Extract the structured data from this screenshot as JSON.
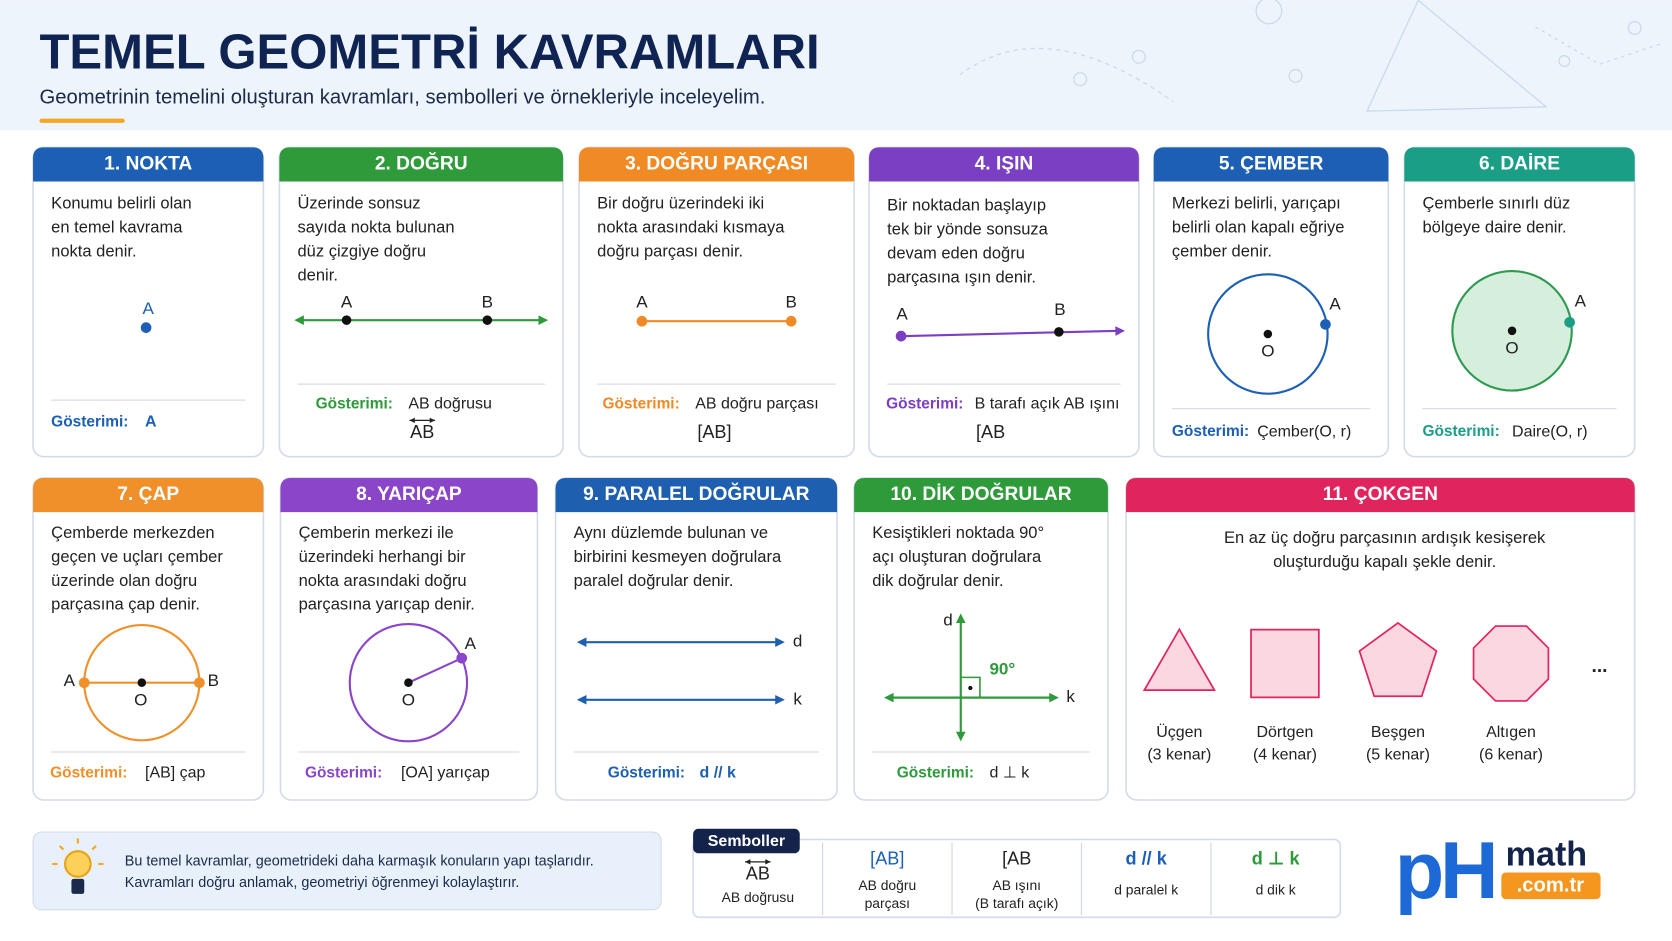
{
  "header": {
    "title": "TEMEL GEOMETRİ KAVRAMLARI",
    "subtitle": "Geometrinin temelini oluşturan kavramları, sembolleri ve örnekleriyle inceleyelim."
  },
  "cards": [
    {
      "title": "1. NOKTA",
      "color": "#1c5fb5",
      "description": [
        "Konumu belirli olan",
        "en temel kavrama",
        "nokta denir."
      ],
      "labels": [
        "A"
      ],
      "notation_label": "Gösterimi:",
      "notation": [
        "A"
      ]
    },
    {
      "title": "2. DOĞRU",
      "color": "#2e9a3a",
      "description": [
        "Üzerinde sonsuz",
        "sayıda nokta bulunan",
        "düz çizgiye doğru",
        "denir."
      ],
      "labels": [
        "A",
        "B"
      ],
      "notation_label": "Gösterimi:",
      "notation": [
        "AB doğrusu",
        "AB"
      ]
    },
    {
      "title": "3. DOĞRU PARÇASI",
      "color": "#f08a24",
      "description": [
        "Bir doğru üzerindeki iki",
        "nokta arasındaki kısmaya",
        "doğru parçası denir."
      ],
      "labels": [
        "A",
        "B"
      ],
      "notation_label": "Gösterimi:",
      "notation": [
        "AB doğru parçası",
        "[AB]"
      ]
    },
    {
      "title": "4. IŞIN",
      "color": "#7b3fc4",
      "description": [
        "Bir noktadan başlayıp",
        "tek bir yönde sonsuza",
        "devam eden doğru",
        "parçasına ışın denir."
      ],
      "labels": [
        "A",
        "B"
      ],
      "notation_label": "Gösterimi:",
      "notation": [
        "B tarafı açık AB ışını",
        "[AB"
      ]
    },
    {
      "title": "5. ÇEMBER",
      "color": "#1c5fb5",
      "description": [
        "Merkezi belirli, yarıçapı",
        "belirli olan kapalı eğriye",
        "çember denir."
      ],
      "labels": [
        "A",
        "O"
      ],
      "notation_label": "Gösterimi:",
      "notation": [
        "Çember(O, r)"
      ]
    },
    {
      "title": "6. DAİRE",
      "color": "#1a9e85",
      "description": [
        "Çemberle sınırlı düz",
        "bölgeye daire denir."
      ],
      "labels": [
        "A",
        "O"
      ],
      "notation_label": "Gösterimi:",
      "notation": [
        "Daire(O, r)"
      ]
    },
    {
      "title": "7. ÇAP",
      "color": "#f0902a",
      "description": [
        "Çemberde merkezden",
        "geçen ve uçları çember",
        "üzerinde olan doğru",
        "parçasına çap denir."
      ],
      "labels": [
        "A",
        "B",
        "O"
      ],
      "notation_label": "Gösterimi:",
      "notation": [
        "[AB] çap"
      ]
    },
    {
      "title": "8. YARIÇAP",
      "color": "#8a45c8",
      "description": [
        "Çemberin merkezi ile",
        "üzerindeki herhangi bir",
        "nokta arasındaki doğru",
        "parçasına yarıçap denir."
      ],
      "labels": [
        "A",
        "O"
      ],
      "notation_label": "Gösterimi:",
      "notation": [
        "[OA] yarıçap"
      ]
    },
    {
      "title": "9. PARALEL DOĞRULAR",
      "color": "#1f5fb0",
      "description": [
        "Aynı düzlemde bulunan ve",
        "birbirini kesmeyen doğrulara",
        "paralel doğrular denir."
      ],
      "labels": [
        "d",
        "k"
      ],
      "notation_label": "Gösterimi:",
      "notation": [
        "d // k"
      ]
    },
    {
      "title": "10. DİK DOĞRULAR",
      "color": "#2e9a3a",
      "description": [
        "Kesiştikleri noktada 90°",
        "açı oluşturan doğrulara",
        "dik doğrular denir."
      ],
      "labels": [
        "d",
        "k",
        "90°"
      ],
      "notation_label": "Gösterimi:",
      "notation": [
        "d ⊥ k"
      ]
    },
    {
      "title": "11. ÇOKGEN",
      "color": "#e0245e",
      "description": [
        "En az üç doğru parçasının ardışık kesişerek",
        "oluşturduğu kapalı şekle denir."
      ],
      "polygons": [
        {
          "name": "Üçgen",
          "sides": "(3 kenar)"
        },
        {
          "name": "Dörtgen",
          "sides": "(4 kenar)"
        },
        {
          "name": "Beşgen",
          "sides": "(5 kenar)"
        },
        {
          "name": "Altıgen",
          "sides": "(6 kenar)"
        }
      ],
      "more": "..."
    }
  ],
  "tip": [
    "Bu temel kavramlar, geometrideki daha karmaşık konuların yapı taşlarıdır.",
    "Kavramları doğru anlamak, geometriyi öğrenmeyi kolaylaştırır."
  ],
  "symbols": {
    "title": "Semboller",
    "items": [
      {
        "symbol": "AB",
        "caption": [
          "AB doğrusu"
        ]
      },
      {
        "symbol": "[AB]",
        "caption": [
          "AB doğru",
          "parçası"
        ]
      },
      {
        "symbol": "[AB",
        "caption": [
          "AB ışını",
          "(B tarafı açık)"
        ]
      },
      {
        "symbol": "d // k",
        "caption": [
          "d paralel k"
        ]
      },
      {
        "symbol": "d ⊥ k",
        "caption": [
          "d dik k"
        ]
      }
    ]
  },
  "logo": {
    "ph": "pH",
    "math": "math",
    "domain": ".com.tr"
  }
}
